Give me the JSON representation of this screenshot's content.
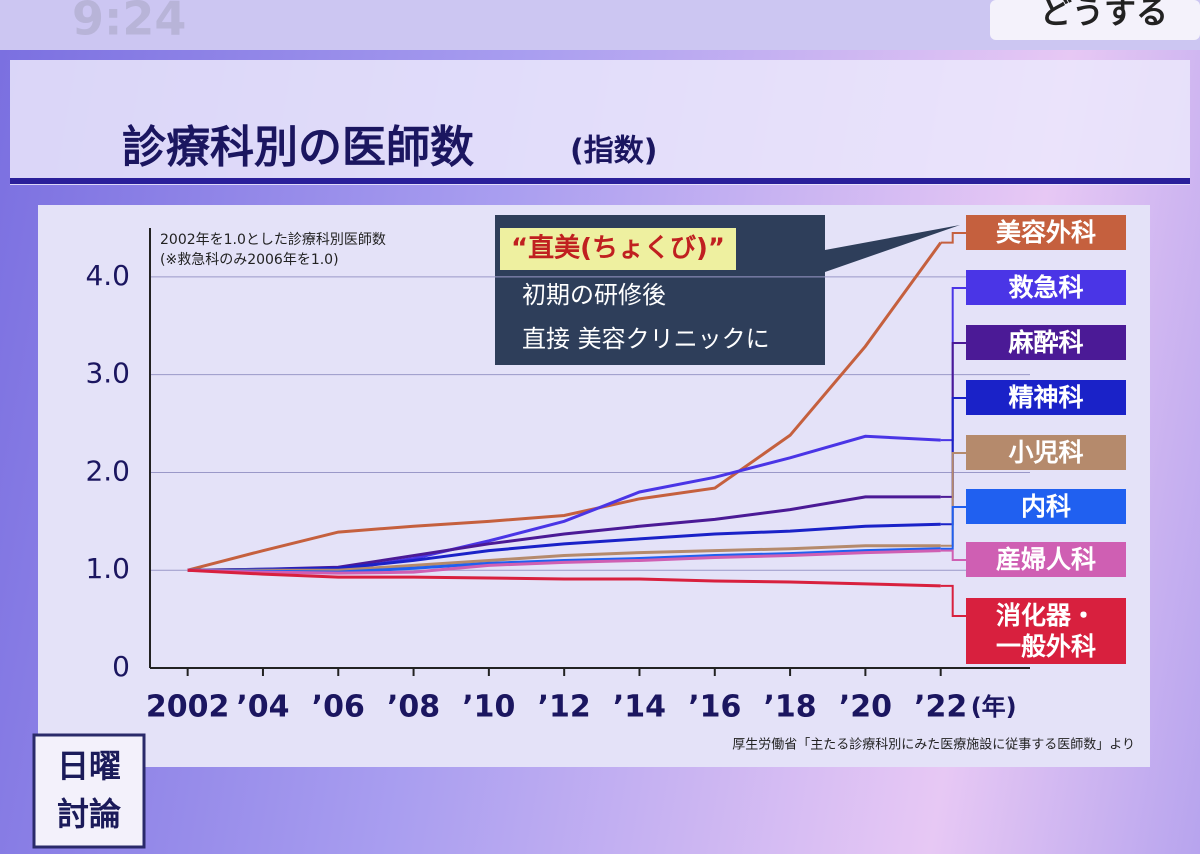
{
  "screen": {
    "clock": "9:24",
    "corner_tag": "どうする",
    "program": [
      "日曜",
      "討論"
    ]
  },
  "chart_data": {
    "type": "line",
    "title": "診療科別の医師数",
    "title_suffix": "(指数)",
    "note": [
      "2002年を1.0とした診療科別医師数",
      "(※救急科のみ2006年を1.0)"
    ],
    "annotation": {
      "highlight": "“直美(ちょくび)”",
      "lines": [
        "初期の研修後",
        "直接 美容クリニックに"
      ]
    },
    "x_unit": "(年)",
    "source": "厚生労働省「主たる診療科別にみた医療施設に従事する医師数」より",
    "x": [
      2002,
      2004,
      2006,
      2008,
      2010,
      2012,
      2014,
      2016,
      2018,
      2020,
      2022
    ],
    "xlim": [
      2001,
      2024
    ],
    "xticks": [
      {
        "value": 2002,
        "label": "2002"
      },
      {
        "value": 2004,
        "label": "’04"
      },
      {
        "value": 2006,
        "label": "’06"
      },
      {
        "value": 2008,
        "label": "’08"
      },
      {
        "value": 2010,
        "label": "’10"
      },
      {
        "value": 2012,
        "label": "’12"
      },
      {
        "value": 2014,
        "label": "’14"
      },
      {
        "value": 2016,
        "label": "’16"
      },
      {
        "value": 2018,
        "label": "’18"
      },
      {
        "value": 2020,
        "label": "’20"
      },
      {
        "value": 2022,
        "label": "’22"
      }
    ],
    "ylim": [
      0,
      4.5
    ],
    "yticks": [
      0,
      {
        "value": 1,
        "label": "1.0"
      },
      {
        "value": 2,
        "label": "2.0"
      },
      {
        "value": 3,
        "label": "3.0"
      },
      {
        "value": 4,
        "label": "4.0"
      }
    ],
    "grid": true,
    "series": [
      {
        "name": "美容外科",
        "color": "#c5603e",
        "values": [
          1.0,
          1.2,
          1.39,
          1.45,
          1.5,
          1.56,
          1.73,
          1.84,
          2.38,
          3.29,
          4.35
        ]
      },
      {
        "name": "救急科",
        "color": "#4a35e6",
        "values": [
          null,
          null,
          1.0,
          1.12,
          1.3,
          1.5,
          1.8,
          1.95,
          2.15,
          2.37,
          2.33
        ]
      },
      {
        "name": "麻酔科",
        "color": "#4b1a96",
        "values": [
          1.0,
          1.01,
          1.03,
          1.15,
          1.27,
          1.37,
          1.45,
          1.52,
          1.62,
          1.75,
          1.75
        ]
      },
      {
        "name": "精神科",
        "color": "#1a22c8",
        "values": [
          1.0,
          1.01,
          1.02,
          1.1,
          1.2,
          1.27,
          1.32,
          1.37,
          1.4,
          1.45,
          1.47
        ]
      },
      {
        "name": "小児科",
        "color": "#b58a6c",
        "values": [
          1.0,
          1.0,
          1.0,
          1.05,
          1.1,
          1.15,
          1.18,
          1.2,
          1.22,
          1.25,
          1.25
        ]
      },
      {
        "name": "内科",
        "color": "#2060f0",
        "values": [
          1.0,
          0.99,
          0.98,
          1.02,
          1.07,
          1.1,
          1.12,
          1.15,
          1.17,
          1.2,
          1.22
        ]
      },
      {
        "name": "産婦人科",
        "color": "#cf5fb3",
        "values": [
          1.0,
          0.98,
          0.97,
          0.98,
          1.05,
          1.08,
          1.1,
          1.13,
          1.15,
          1.18,
          1.2
        ]
      },
      {
        "name": "消化器・一般外科",
        "color": "#d8203e",
        "values": [
          1.0,
          0.96,
          0.93,
          0.93,
          0.92,
          0.91,
          0.91,
          0.89,
          0.88,
          0.86,
          0.84
        ]
      }
    ]
  }
}
